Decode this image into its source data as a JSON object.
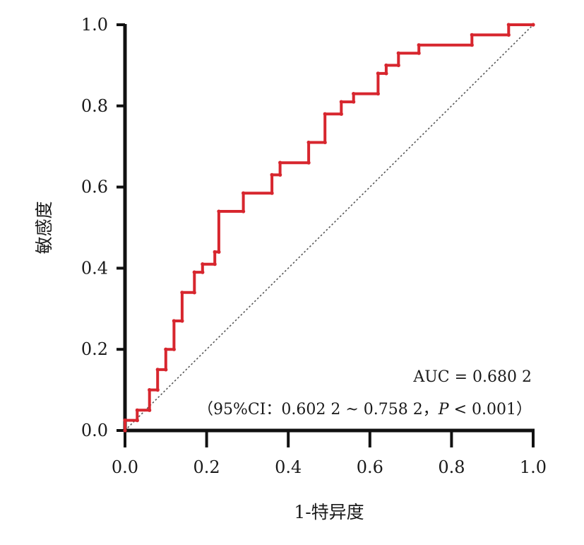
{
  "chart_data": {
    "type": "line",
    "xlabel": "1-特异度",
    "ylabel": "敏感度",
    "xlim": [
      0,
      1
    ],
    "ylim": [
      0,
      1
    ],
    "x_ticks": [
      "0.0",
      "0.2",
      "0.4",
      "0.6",
      "0.8",
      "1.0"
    ],
    "y_ticks": [
      "0.0",
      "0.2",
      "0.4",
      "0.6",
      "0.8",
      "1.0"
    ],
    "grid": false,
    "legend": "none",
    "annotations": {
      "auc": "AUC = 0.680 2",
      "ci": "（95%CI：0.602 2 ~ 0.758 2，",
      "p_symbol": "P",
      "p_value": " < 0.001）"
    },
    "reference_line": {
      "x": [
        0,
        1
      ],
      "y": [
        0,
        1
      ],
      "style": "dotted",
      "color": "#555555"
    },
    "series": [
      {
        "color": "#d7262e",
        "x": [
          0,
          0,
          0.03,
          0.03,
          0.06,
          0.06,
          0.08,
          0.08,
          0.1,
          0.1,
          0.12,
          0.12,
          0.14,
          0.14,
          0.17,
          0.17,
          0.19,
          0.19,
          0.22,
          0.22,
          0.23,
          0.23,
          0.29,
          0.29,
          0.36,
          0.36,
          0.38,
          0.38,
          0.45,
          0.45,
          0.49,
          0.49,
          0.53,
          0.53,
          0.56,
          0.56,
          0.62,
          0.62,
          0.64,
          0.64,
          0.67,
          0.67,
          0.72,
          0.72,
          0.85,
          0.85,
          0.94,
          0.94,
          1.0
        ],
        "y": [
          0,
          0.025,
          0.025,
          0.05,
          0.05,
          0.1,
          0.1,
          0.15,
          0.15,
          0.2,
          0.2,
          0.27,
          0.27,
          0.34,
          0.34,
          0.39,
          0.39,
          0.41,
          0.41,
          0.44,
          0.44,
          0.54,
          0.54,
          0.585,
          0.585,
          0.63,
          0.63,
          0.66,
          0.66,
          0.71,
          0.71,
          0.78,
          0.78,
          0.81,
          0.81,
          0.83,
          0.83,
          0.88,
          0.88,
          0.9,
          0.9,
          0.93,
          0.93,
          0.95,
          0.95,
          0.975,
          0.975,
          1.0,
          1.0
        ]
      }
    ]
  }
}
